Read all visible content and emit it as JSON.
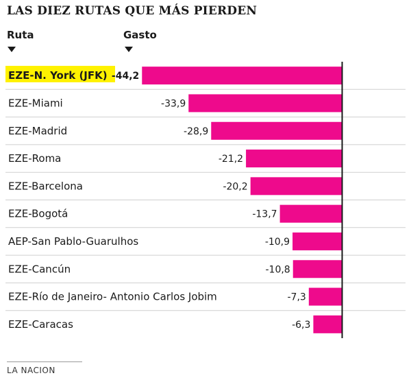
{
  "title": "LAS DIEZ RUTAS QUE MÁS PIERDEN",
  "headers": {
    "route": "Ruta",
    "spend": "Gasto"
  },
  "source": "LA NACION",
  "colors": {
    "bar": "#ee0a8c",
    "highlight": "#fff200",
    "text": "#1a1a1a",
    "divider": "#cfcfcf",
    "axis": "#1a1a1a"
  },
  "chart_data": {
    "type": "bar",
    "orientation": "horizontal",
    "title": "LAS DIEZ RUTAS QUE MÁS PIERDEN",
    "xlabel": "Gasto",
    "ylabel": "Ruta",
    "categories": [
      "EZE-N. York (JFK)",
      "EZE-Miami",
      "EZE-Madrid",
      "EZE-Roma",
      "EZE-Barcelona",
      "EZE-Bogotá",
      "AEP-San Pablo-Guarulhos",
      "EZE-Cancún",
      "EZE-Río de Janeiro- Antonio Carlos Jobim",
      "EZE-Caracas"
    ],
    "values": [
      -44.2,
      -33.9,
      -28.9,
      -21.2,
      -20.2,
      -13.7,
      -10.9,
      -10.8,
      -7.3,
      -6.3
    ],
    "value_labels": [
      "-44,2",
      "-33,9",
      "-28,9",
      "-21,2",
      "-20,2",
      "-13,7",
      "-10,9",
      "-10,8",
      "-7,3",
      "-6,3"
    ],
    "highlighted_index": 0,
    "xlim": [
      -44.2,
      0
    ],
    "grid": false,
    "legend": "none"
  }
}
